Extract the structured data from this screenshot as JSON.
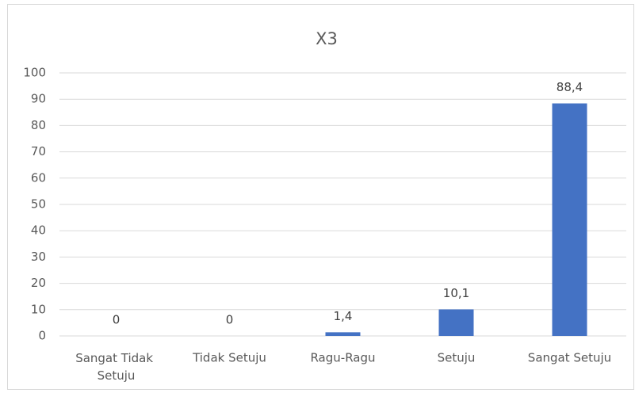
{
  "chart_data": {
    "type": "bar",
    "title": "X3",
    "categories": [
      "Sangat Tidak Setuju",
      "Tidak Setuju",
      "Ragu-Ragu",
      "Setuju",
      "Sangat Setuju"
    ],
    "values": [
      0,
      0,
      1.4,
      10.1,
      88.4
    ],
    "value_labels": [
      "0",
      "0",
      "1,4",
      "10,1",
      "88,4"
    ],
    "color": "#4472c4",
    "ylim": [
      0,
      100
    ],
    "yticks": [
      0,
      10,
      20,
      30,
      40,
      50,
      60,
      70,
      80,
      90,
      100
    ],
    "grid": true
  }
}
